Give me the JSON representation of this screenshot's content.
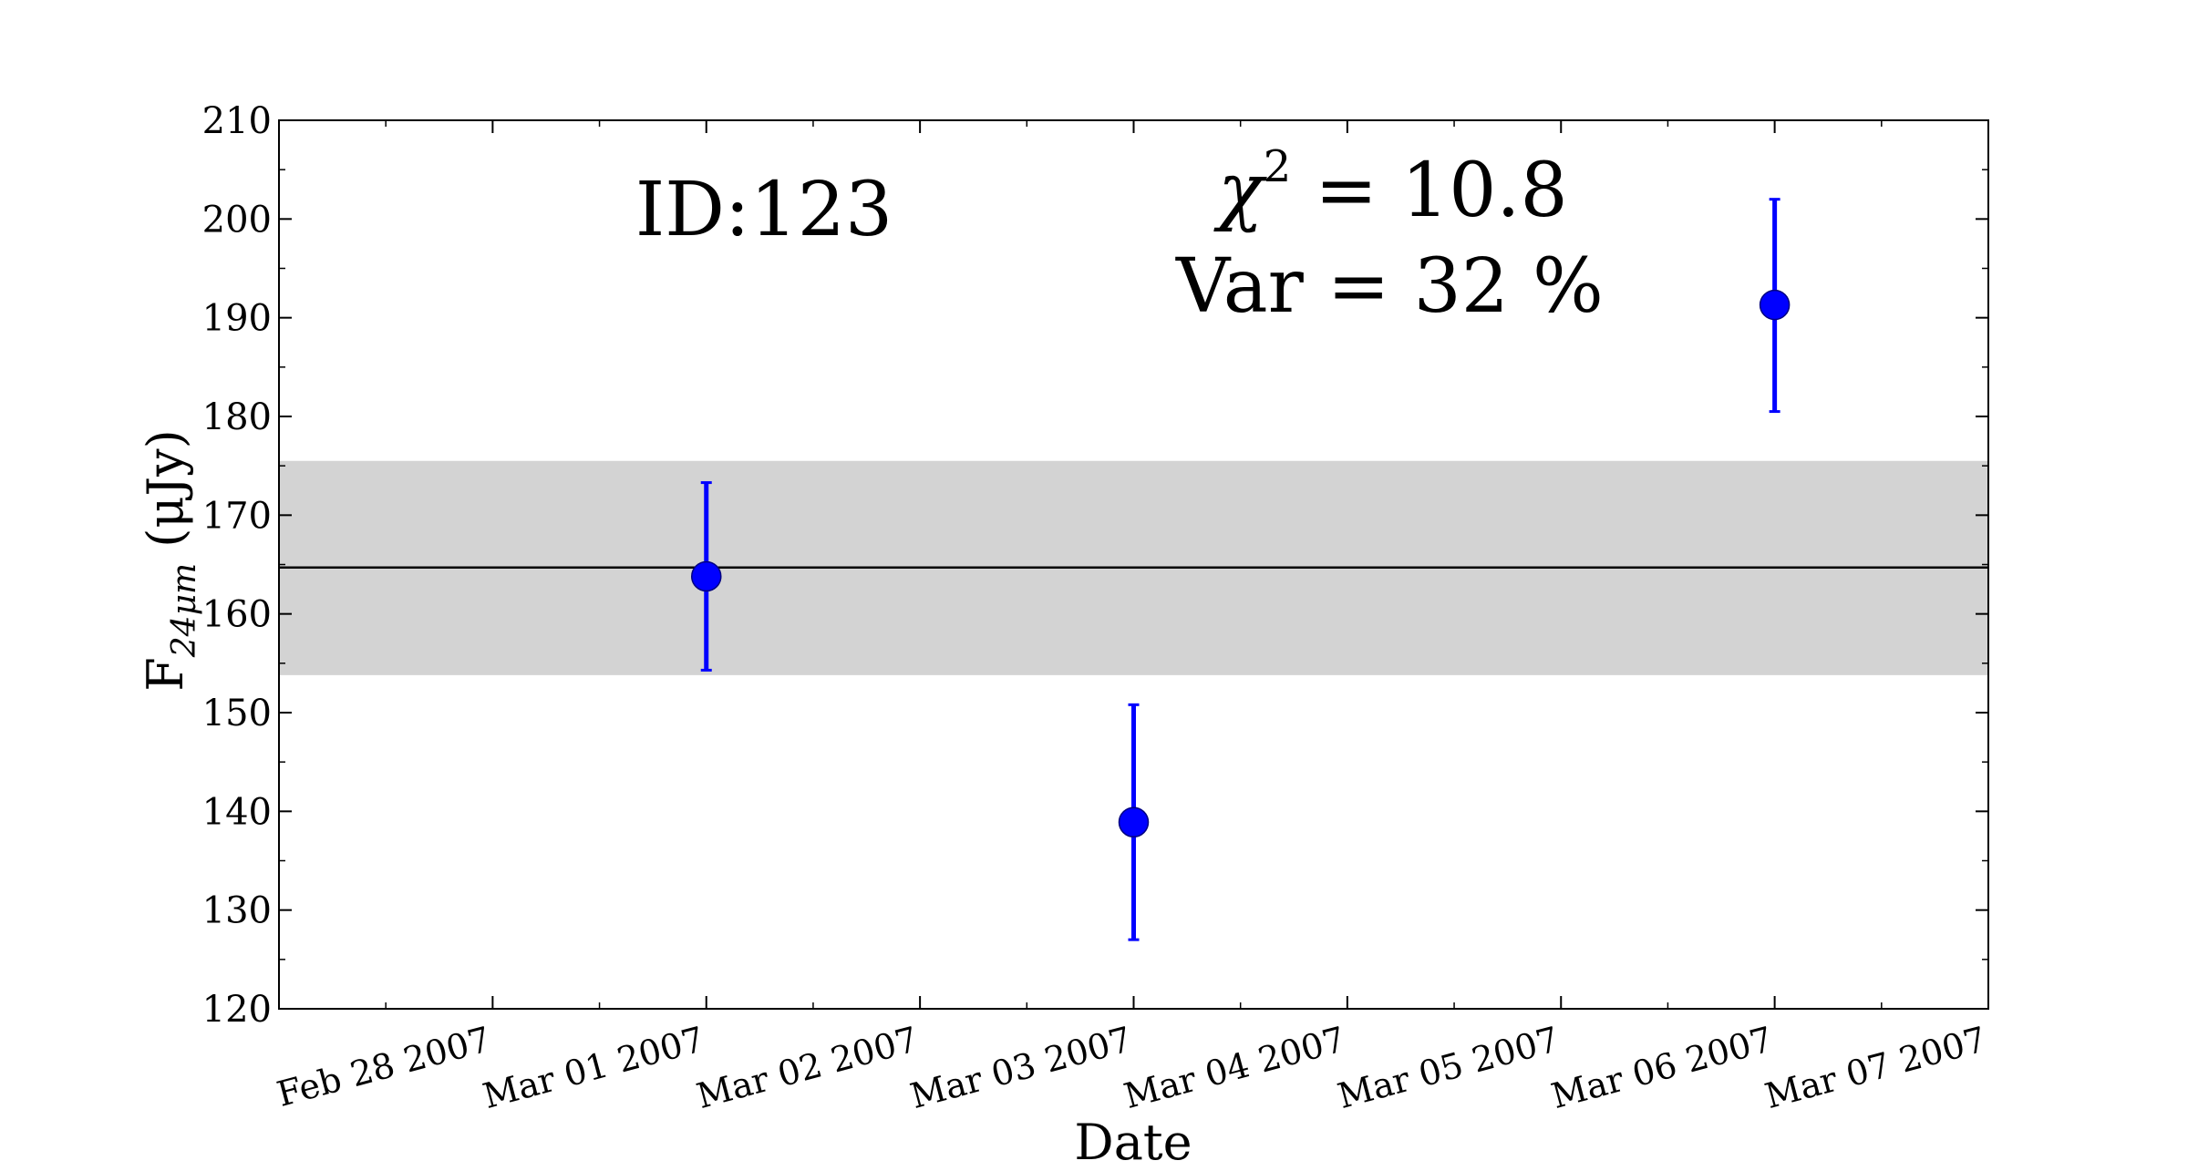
{
  "chart_data": {
    "type": "scatter",
    "annotation_id": "ID:123",
    "annotation_chi_sym": "χ",
    "annotation_chi_exp": "2",
    "annotation_chi_val": " = 10.8",
    "annotation_var": "Var = 32 %",
    "xlabel": "Date",
    "ylabel_main": "F",
    "ylabel_sub": "24μm",
    "ylabel_unit": " (μJy)",
    "ylim": [
      120,
      210
    ],
    "yticks": [
      120,
      130,
      140,
      150,
      160,
      170,
      180,
      190,
      200,
      210
    ],
    "xlim": [
      "2007-02-27",
      "2007-03-07"
    ],
    "xticks": [
      {
        "date": "2007-02-28",
        "label": "Feb 28 2007"
      },
      {
        "date": "2007-03-01",
        "label": "Mar 01 2007"
      },
      {
        "date": "2007-03-02",
        "label": "Mar 02 2007"
      },
      {
        "date": "2007-03-03",
        "label": "Mar 03 2007"
      },
      {
        "date": "2007-03-04",
        "label": "Mar 04 2007"
      },
      {
        "date": "2007-03-05",
        "label": "Mar 05 2007"
      },
      {
        "date": "2007-03-06",
        "label": "Mar 06 2007"
      },
      {
        "date": "2007-03-07",
        "label": "Mar 07 2007"
      }
    ],
    "points": [
      {
        "x": "2007-03-01 00:00",
        "y": 163.8,
        "yerr_low": 154.3,
        "yerr_high": 173.3
      },
      {
        "x": "2007-03-03 00:00",
        "y": 138.9,
        "yerr_low": 127.0,
        "yerr_high": 150.8
      },
      {
        "x": "2007-03-06 00:00",
        "y": 191.3,
        "yerr_low": 180.5,
        "yerr_high": 202.0
      }
    ],
    "mean": 164.7,
    "band": [
      153.8,
      175.5
    ],
    "colors": {
      "points": "#0000ff",
      "band": "#d3d3d3",
      "mean": "#000000",
      "errorbar": "#0000ff"
    }
  }
}
